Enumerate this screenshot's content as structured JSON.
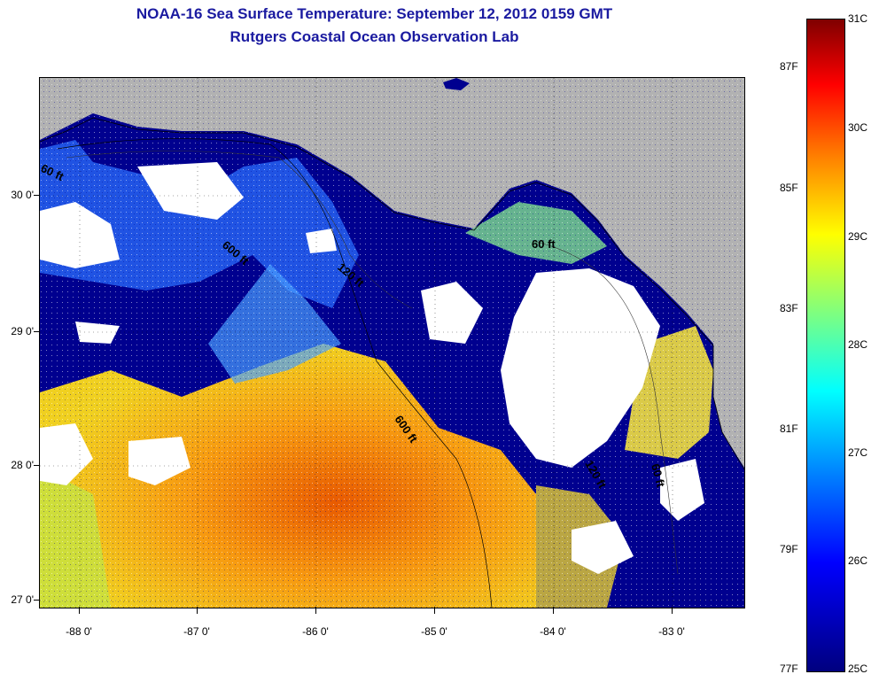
{
  "title": "NOAA-16 Sea Surface Temperature:  September 12, 2012 0159 GMT",
  "subtitle": "Rutgers Coastal Ocean Observation Lab",
  "map": {
    "lat_labels": [
      "30 0'",
      "29 0'",
      "28 0'",
      "27 0'"
    ],
    "lon_labels": [
      "-88 0'",
      "-87 0'",
      "-86 0'",
      "-85 0'",
      "-84 0'",
      "-83 0'"
    ],
    "lat_range": [
      26.95,
      30.85
    ],
    "lon_range": [
      -88.35,
      -82.4
    ],
    "contours": [
      "600 ft",
      "120 ft",
      "60 ft",
      "60 ft",
      "600 ft",
      "120 ft",
      "60 ft"
    ],
    "colors": {
      "land": "#b2b2b2",
      "cloud": "#ffffff",
      "cold": "#00008f"
    }
  },
  "colorbar": {
    "celsius_labels": [
      "31C",
      "30C",
      "29C",
      "28C",
      "27C",
      "26C",
      "25C"
    ],
    "fahrenheit_labels": [
      "87F",
      "85F",
      "83F",
      "81F",
      "79F",
      "77F"
    ],
    "range_c": [
      25,
      31
    ],
    "colormap": "jet"
  }
}
